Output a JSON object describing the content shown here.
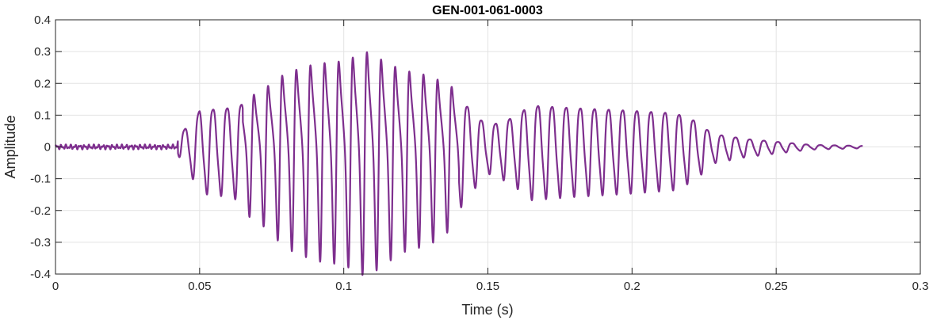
{
  "chart_data": {
    "type": "line",
    "title": "GEN-001-061-0003",
    "xlabel": "Time (s)",
    "ylabel": "Amplitude",
    "xlim": [
      0,
      0.3
    ],
    "ylim": [
      -0.4,
      0.4
    ],
    "x_ticks": [
      0,
      0.05,
      0.1,
      0.15,
      0.2,
      0.25,
      0.3
    ],
    "x_tick_labels": [
      "0",
      "0.05",
      "0.1",
      "0.15",
      "0.2",
      "0.25",
      "0.3"
    ],
    "y_ticks": [
      -0.4,
      -0.3,
      -0.2,
      -0.1,
      0,
      0.1,
      0.2,
      0.3,
      0.4
    ],
    "y_tick_labels": [
      "-0.4",
      "-0.3",
      "-0.2",
      "-0.1",
      "0",
      "0.1",
      "0.2",
      "0.3",
      "0.4"
    ],
    "grid": true,
    "line_color": "#7E2F8E",
    "series": [
      {
        "x_start": 0,
        "x_end": 0.28,
        "envelope": [
          [
            0.0,
            0.008
          ],
          [
            0.042,
            0.008
          ],
          [
            0.044,
            0.06
          ],
          [
            0.048,
            0.1
          ],
          [
            0.05,
            0.14
          ],
          [
            0.06,
            0.15
          ],
          [
            0.07,
            0.18
          ],
          [
            0.08,
            0.25
          ],
          [
            0.09,
            0.28
          ],
          [
            0.1,
            0.29
          ],
          [
            0.108,
            0.32
          ],
          [
            0.112,
            0.3
          ],
          [
            0.12,
            0.26
          ],
          [
            0.13,
            0.24
          ],
          [
            0.14,
            0.19
          ],
          [
            0.145,
            0.13
          ],
          [
            0.15,
            0.08
          ],
          [
            0.158,
            0.11
          ],
          [
            0.165,
            0.16
          ],
          [
            0.18,
            0.15
          ],
          [
            0.2,
            0.14
          ],
          [
            0.215,
            0.13
          ],
          [
            0.222,
            0.1
          ],
          [
            0.228,
            0.05
          ],
          [
            0.24,
            0.03
          ],
          [
            0.25,
            0.02
          ],
          [
            0.262,
            0.008
          ],
          [
            0.28,
            0.004
          ]
        ],
        "peak_interval_s": 0.0049
      }
    ]
  }
}
